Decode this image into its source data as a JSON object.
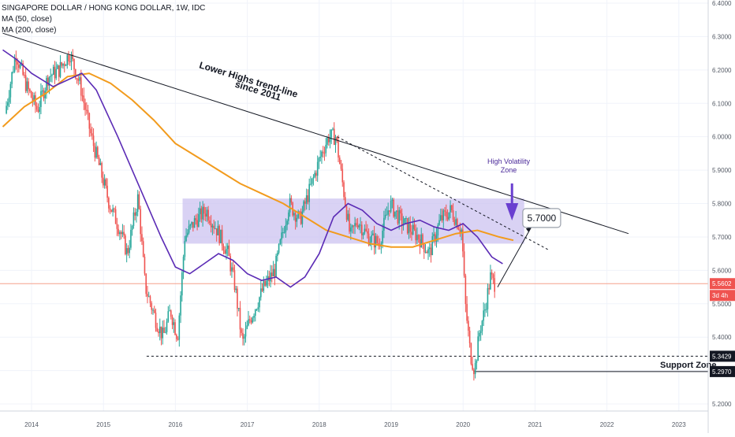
{
  "header": {
    "symbol_title": "SINGAPORE DOLLAR / HONG KONG DOLLAR, 1W, IDC",
    "ma_short_label": "MA (50, close)",
    "ma_long_label": "MA (200, close)"
  },
  "annotations": {
    "trendline_label_1": "Lower Highs trend-line",
    "trendline_label_2": "since 2011",
    "volatility_label_1": "High Volatility",
    "volatility_label_2": "Zone",
    "target_box": "5.7000",
    "support_label": "Support Zone"
  },
  "price_axis": {
    "ticks": [
      "6.4000",
      "6.3000",
      "6.2000",
      "6.1000",
      "6.0000",
      "5.9000",
      "5.8000",
      "5.7000",
      "5.6000",
      "5.5000",
      "5.4000",
      "5.3000",
      "5.2000"
    ],
    "current_price": "5.5602",
    "countdown": "3d 4h",
    "support_high": "5.3429",
    "support_low": "5.2970"
  },
  "time_axis": {
    "ticks": [
      "2014",
      "2015",
      "2016",
      "2017",
      "2018",
      "2019",
      "2020",
      "2021",
      "2022",
      "2023"
    ]
  },
  "colors": {
    "up": "#26a69a",
    "down": "#ef5350",
    "ma50": "#5b2bb5",
    "ma200": "#f29b1d",
    "zone": "#c9bff0",
    "price_line": "#f5a08c"
  },
  "chart_data": {
    "type": "line",
    "title": "SINGAPORE DOLLAR / HONG KONG DOLLAR, 1W, IDC",
    "xlabel": "",
    "ylabel": "",
    "xlim": [
      2013.6,
      2023.3
    ],
    "ylim": [
      5.17,
      6.42
    ],
    "grid": true,
    "series": [
      {
        "name": "price",
        "x": [
          2013.65,
          2013.8,
          2013.95,
          2014.1,
          2014.25,
          2014.4,
          2014.55,
          2014.7,
          2014.85,
          2015.0,
          2015.1,
          2015.25,
          2015.35,
          2015.5,
          2015.6,
          2015.75,
          2015.85,
          2015.95,
          2016.05,
          2016.15,
          2016.3,
          2016.45,
          2016.6,
          2016.75,
          2016.85,
          2016.95,
          2017.05,
          2017.15,
          2017.25,
          2017.4,
          2017.5,
          2017.6,
          2017.75,
          2017.9,
          2018.05,
          2018.15,
          2018.25,
          2018.35,
          2018.45,
          2018.55,
          2018.7,
          2018.85,
          2019.0,
          2019.15,
          2019.3,
          2019.4,
          2019.55,
          2019.7,
          2019.85,
          2020.0,
          2020.05,
          2020.12,
          2020.18,
          2020.25,
          2020.32,
          2020.4,
          2020.45
        ],
        "values": [
          6.07,
          6.25,
          6.15,
          6.08,
          6.18,
          6.2,
          6.25,
          6.15,
          6.0,
          5.88,
          5.8,
          5.72,
          5.65,
          5.82,
          5.55,
          5.45,
          5.4,
          5.48,
          5.4,
          5.7,
          5.75,
          5.78,
          5.72,
          5.65,
          5.55,
          5.38,
          5.45,
          5.5,
          5.55,
          5.6,
          5.7,
          5.8,
          5.75,
          5.85,
          5.95,
          6.0,
          6.0,
          5.85,
          5.7,
          5.75,
          5.7,
          5.68,
          5.8,
          5.75,
          5.72,
          5.7,
          5.65,
          5.75,
          5.78,
          5.72,
          5.5,
          5.35,
          5.3,
          5.42,
          5.48,
          5.58,
          5.56
        ]
      },
      {
        "name": "MA (50, close)",
        "x": [
          2013.6,
          2013.8,
          2014.0,
          2014.3,
          2014.5,
          2014.7,
          2014.9,
          2015.2,
          2015.5,
          2015.8,
          2016.0,
          2016.2,
          2016.4,
          2016.6,
          2016.8,
          2017.0,
          2017.2,
          2017.4,
          2017.6,
          2017.8,
          2018.0,
          2018.2,
          2018.4,
          2018.6,
          2018.8,
          2019.0,
          2019.2,
          2019.4,
          2019.6,
          2019.8,
          2020.0,
          2020.2,
          2020.4,
          2020.55
        ],
        "values": [
          6.26,
          6.23,
          6.19,
          6.15,
          6.17,
          6.19,
          6.14,
          6.0,
          5.85,
          5.7,
          5.61,
          5.59,
          5.62,
          5.65,
          5.63,
          5.59,
          5.57,
          5.58,
          5.55,
          5.58,
          5.65,
          5.76,
          5.8,
          5.78,
          5.74,
          5.72,
          5.74,
          5.75,
          5.73,
          5.72,
          5.74,
          5.7,
          5.64,
          5.62
        ]
      },
      {
        "name": "MA (200, close)",
        "x": [
          2013.6,
          2013.9,
          2014.2,
          2014.5,
          2014.8,
          2015.1,
          2015.4,
          2015.7,
          2016.0,
          2016.3,
          2016.6,
          2016.9,
          2017.2,
          2017.5,
          2017.8,
          2018.1,
          2018.4,
          2018.7,
          2019.0,
          2019.3,
          2019.6,
          2019.9,
          2020.2,
          2020.5,
          2020.7
        ],
        "values": [
          6.03,
          6.09,
          6.13,
          6.18,
          6.19,
          6.16,
          6.11,
          6.05,
          5.98,
          5.94,
          5.9,
          5.86,
          5.83,
          5.8,
          5.76,
          5.72,
          5.7,
          5.68,
          5.67,
          5.67,
          5.69,
          5.71,
          5.72,
          5.7,
          5.69
        ]
      }
    ],
    "trendline": {
      "x": [
        2013.6,
        2022.3
      ],
      "y": [
        6.31,
        5.71
      ]
    },
    "dashed_trendline": {
      "x": [
        2018.25,
        2021.2
      ],
      "y": [
        6.0,
        5.66
      ]
    },
    "zone": {
      "x": [
        2016.1,
        2020.85
      ],
      "y": [
        5.68,
        5.815
      ]
    },
    "support_levels": [
      5.3429,
      5.297
    ]
  }
}
